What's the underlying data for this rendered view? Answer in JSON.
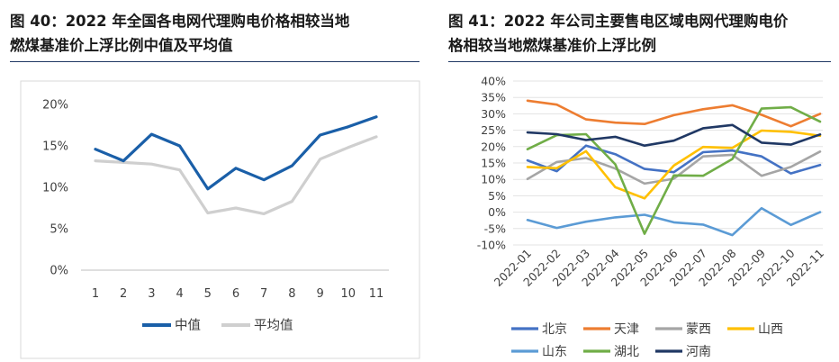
{
  "left_panel": {
    "title_line1": "图 40：2022 年全国各电网代理购电价格相较当地",
    "title_line2": "燃煤基准价上浮比例中值及平均值"
  },
  "right_panel": {
    "title_line1": "图 41：2022 年公司主要售电区域电网代理购电价",
    "title_line2": "格相较当地燃煤基准价上浮比例"
  },
  "chart_data": [
    {
      "type": "line",
      "categories": [
        "1",
        "2",
        "3",
        "4",
        "5",
        "6",
        "7",
        "8",
        "9",
        "10",
        "11"
      ],
      "y_ticks": [
        "0%",
        "5%",
        "10%",
        "15%",
        "20%"
      ],
      "ylim": [
        0,
        20
      ],
      "grid": false,
      "legend_position": "bottom",
      "series": [
        {
          "name": "中值",
          "color": "#1a5fa8",
          "values": [
            14.6,
            13.2,
            16.4,
            15.0,
            9.8,
            12.3,
            10.9,
            12.6,
            16.3,
            17.3,
            18.5
          ]
        },
        {
          "name": "平均值",
          "color": "#cfcfcf",
          "values": [
            13.2,
            13.0,
            12.8,
            12.1,
            6.9,
            7.5,
            6.8,
            8.3,
            13.4,
            14.8,
            16.1
          ]
        }
      ]
    },
    {
      "type": "line",
      "categories": [
        "2022-01",
        "2022-02",
        "2022-03",
        "2022-04",
        "2022-05",
        "2022-06",
        "2022-07",
        "2022-08",
        "2022-09",
        "2022-10",
        "2022-11"
      ],
      "y_ticks": [
        "-10%",
        "-5%",
        "0%",
        "5%",
        "10%",
        "15%",
        "20%",
        "25%",
        "30%",
        "35%",
        "40%"
      ],
      "ylim": [
        -10,
        40
      ],
      "grid": true,
      "legend_position": "bottom",
      "series": [
        {
          "name": "北京",
          "color": "#4472c4",
          "values": [
            15.8,
            12.5,
            20.3,
            17.7,
            13.2,
            12.2,
            18.3,
            18.8,
            17.0,
            11.8,
            14.4
          ]
        },
        {
          "name": "天津",
          "color": "#ed7d31",
          "values": [
            34.0,
            32.8,
            28.3,
            27.3,
            26.9,
            29.6,
            31.4,
            32.6,
            29.7,
            26.2,
            30.0
          ]
        },
        {
          "name": "蒙西",
          "color": "#a5a5a5",
          "values": [
            10.1,
            15.3,
            16.5,
            13.3,
            8.7,
            10.2,
            17.0,
            17.5,
            11.1,
            13.8,
            18.5
          ]
        },
        {
          "name": "山西",
          "color": "#ffc000",
          "values": [
            13.8,
            13.4,
            18.6,
            7.6,
            4.2,
            14.2,
            19.9,
            19.6,
            24.9,
            24.5,
            23.3
          ]
        },
        {
          "name": "山东",
          "color": "#5b9bd5",
          "values": [
            -2.4,
            -4.8,
            -2.9,
            -1.6,
            -0.8,
            -3.1,
            -3.8,
            -7.0,
            1.2,
            -3.9,
            0.0
          ]
        },
        {
          "name": "湖北",
          "color": "#70ad47",
          "values": [
            19.2,
            23.5,
            23.8,
            14.6,
            -6.6,
            11.2,
            11.1,
            16.2,
            31.6,
            32.0,
            27.6
          ]
        },
        {
          "name": "河南",
          "color": "#203864",
          "values": [
            24.3,
            23.8,
            22.0,
            23.0,
            20.3,
            21.8,
            25.6,
            26.6,
            21.2,
            20.6,
            23.7
          ]
        }
      ]
    }
  ]
}
